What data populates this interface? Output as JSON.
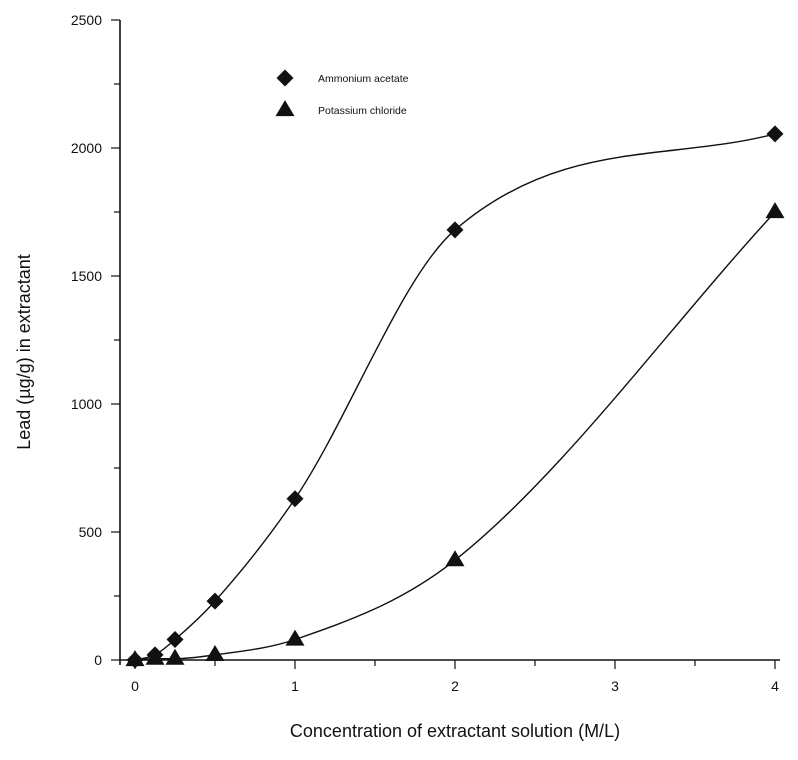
{
  "chart_data": {
    "type": "scatter",
    "xlabel": "Concentration of extractant solution (M/L)",
    "ylabel": "Lead  (µg/g) in extractant",
    "xlim": [
      0,
      4
    ],
    "ylim": [
      0,
      2500
    ],
    "x_ticks": [
      "0",
      "1",
      "2",
      "3",
      "4"
    ],
    "y_ticks": [
      "0",
      "500",
      "1000",
      "1500",
      "2000",
      "2500"
    ],
    "grid": false,
    "legend_position": "top-center",
    "series": [
      {
        "name": "Ammonium acetate",
        "marker": "diamond",
        "color": "#111111",
        "x": [
          0,
          0.125,
          0.25,
          0.5,
          1,
          2,
          4
        ],
        "y": [
          0,
          20,
          80,
          230,
          630,
          1680,
          2055
        ]
      },
      {
        "name": "Potassium chloride",
        "marker": "triangle",
        "color": "#111111",
        "x": [
          0,
          0.125,
          0.25,
          0.5,
          1,
          2,
          4
        ],
        "y": [
          0,
          5,
          5,
          20,
          80,
          390,
          1750
        ]
      }
    ]
  }
}
